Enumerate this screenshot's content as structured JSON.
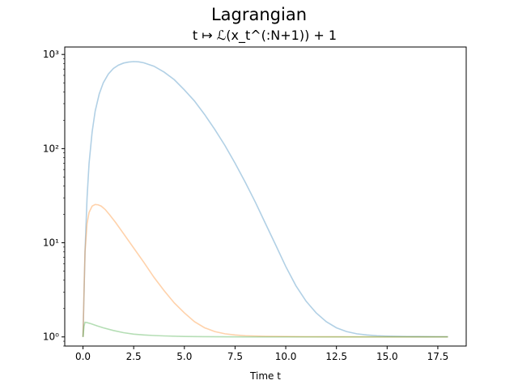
{
  "figure": {
    "suptitle": "Lagrangian",
    "subtitle": "t ↦ ℒ(x_t^(:N+1)) + 1"
  },
  "chart_data": {
    "type": "line",
    "title": "Lagrangian",
    "subtitle": "t ↦ ℒ(x_t^(:N+1)) + 1",
    "xlabel": "Time t",
    "ylabel": "",
    "yscale": "log",
    "xlim": [
      -0.9,
      18.9
    ],
    "ylim": [
      0.8,
      1200
    ],
    "x_ticks": [
      0.0,
      2.5,
      5.0,
      7.5,
      10.0,
      12.5,
      15.0,
      17.5
    ],
    "x_tick_labels": [
      "0.0",
      "2.5",
      "5.0",
      "7.5",
      "10.0",
      "12.5",
      "15.0",
      "17.5"
    ],
    "y_ticks": [
      1,
      10,
      100,
      1000
    ],
    "y_tick_labels": [
      "10⁰",
      "10¹",
      "10²",
      "10³"
    ],
    "grid": false,
    "legend": "none",
    "series": [
      {
        "color": "#1f77b4",
        "x": [
          0.0,
          0.1,
          0.2,
          0.3,
          0.45,
          0.6,
          0.8,
          1.0,
          1.25,
          1.5,
          1.75,
          2.0,
          2.25,
          2.5,
          2.75,
          3.0,
          3.5,
          4.0,
          4.5,
          5.0,
          5.5,
          6.0,
          6.5,
          7.0,
          7.5,
          8.0,
          8.5,
          9.0,
          9.5,
          10.0,
          10.5,
          11.0,
          11.5,
          12.0,
          12.5,
          13.0,
          13.5,
          14.0,
          14.5,
          15.0,
          15.5,
          16.0,
          16.5,
          17.0,
          17.5,
          18.0
        ],
        "y": [
          1.0,
          8.0,
          30.0,
          70.0,
          150.0,
          250.0,
          380.0,
          500.0,
          620.0,
          710.0,
          770.0,
          810.0,
          830.0,
          840.0,
          835.0,
          815.0,
          750.0,
          650.0,
          540.0,
          420.0,
          320.0,
          230.0,
          160.0,
          108.0,
          70.0,
          44.0,
          27.0,
          16.0,
          9.5,
          5.6,
          3.5,
          2.4,
          1.8,
          1.45,
          1.25,
          1.14,
          1.08,
          1.05,
          1.03,
          1.02,
          1.015,
          1.01,
          1.008,
          1.006,
          1.005,
          1.005
        ]
      },
      {
        "color": "#ff7f0e",
        "x": [
          0.0,
          0.05,
          0.1,
          0.2,
          0.3,
          0.45,
          0.6,
          0.75,
          0.9,
          1.1,
          1.3,
          1.6,
          2.0,
          2.5,
          3.0,
          3.5,
          4.0,
          4.5,
          5.0,
          5.5,
          6.0,
          6.5,
          7.0,
          7.5,
          8.0,
          9.0,
          10.0,
          11.0,
          12.0,
          14.0,
          16.0,
          18.0
        ],
        "y": [
          1.0,
          3.0,
          8.0,
          16.0,
          21.0,
          24.5,
          25.5,
          25.3,
          24.5,
          22.5,
          20.0,
          16.5,
          12.5,
          8.8,
          6.2,
          4.3,
          3.1,
          2.3,
          1.8,
          1.45,
          1.25,
          1.14,
          1.08,
          1.05,
          1.03,
          1.015,
          1.01,
          1.005,
          1.003,
          1.002,
          1.001,
          1.001
        ]
      },
      {
        "color": "#2ca02c",
        "x": [
          0.0,
          0.05,
          0.1,
          0.2,
          0.4,
          0.7,
          1.0,
          1.5,
          2.0,
          2.5,
          3.0,
          3.5,
          4.0,
          5.0,
          6.0,
          7.0,
          8.0,
          10.0,
          12.0,
          14.0,
          16.0,
          18.0
        ],
        "y": [
          1.0,
          1.3,
          1.43,
          1.42,
          1.38,
          1.31,
          1.25,
          1.17,
          1.11,
          1.07,
          1.05,
          1.035,
          1.025,
          1.012,
          1.006,
          1.004,
          1.002,
          1.001,
          1.001,
          1.001,
          1.001,
          1.001
        ]
      }
    ]
  }
}
